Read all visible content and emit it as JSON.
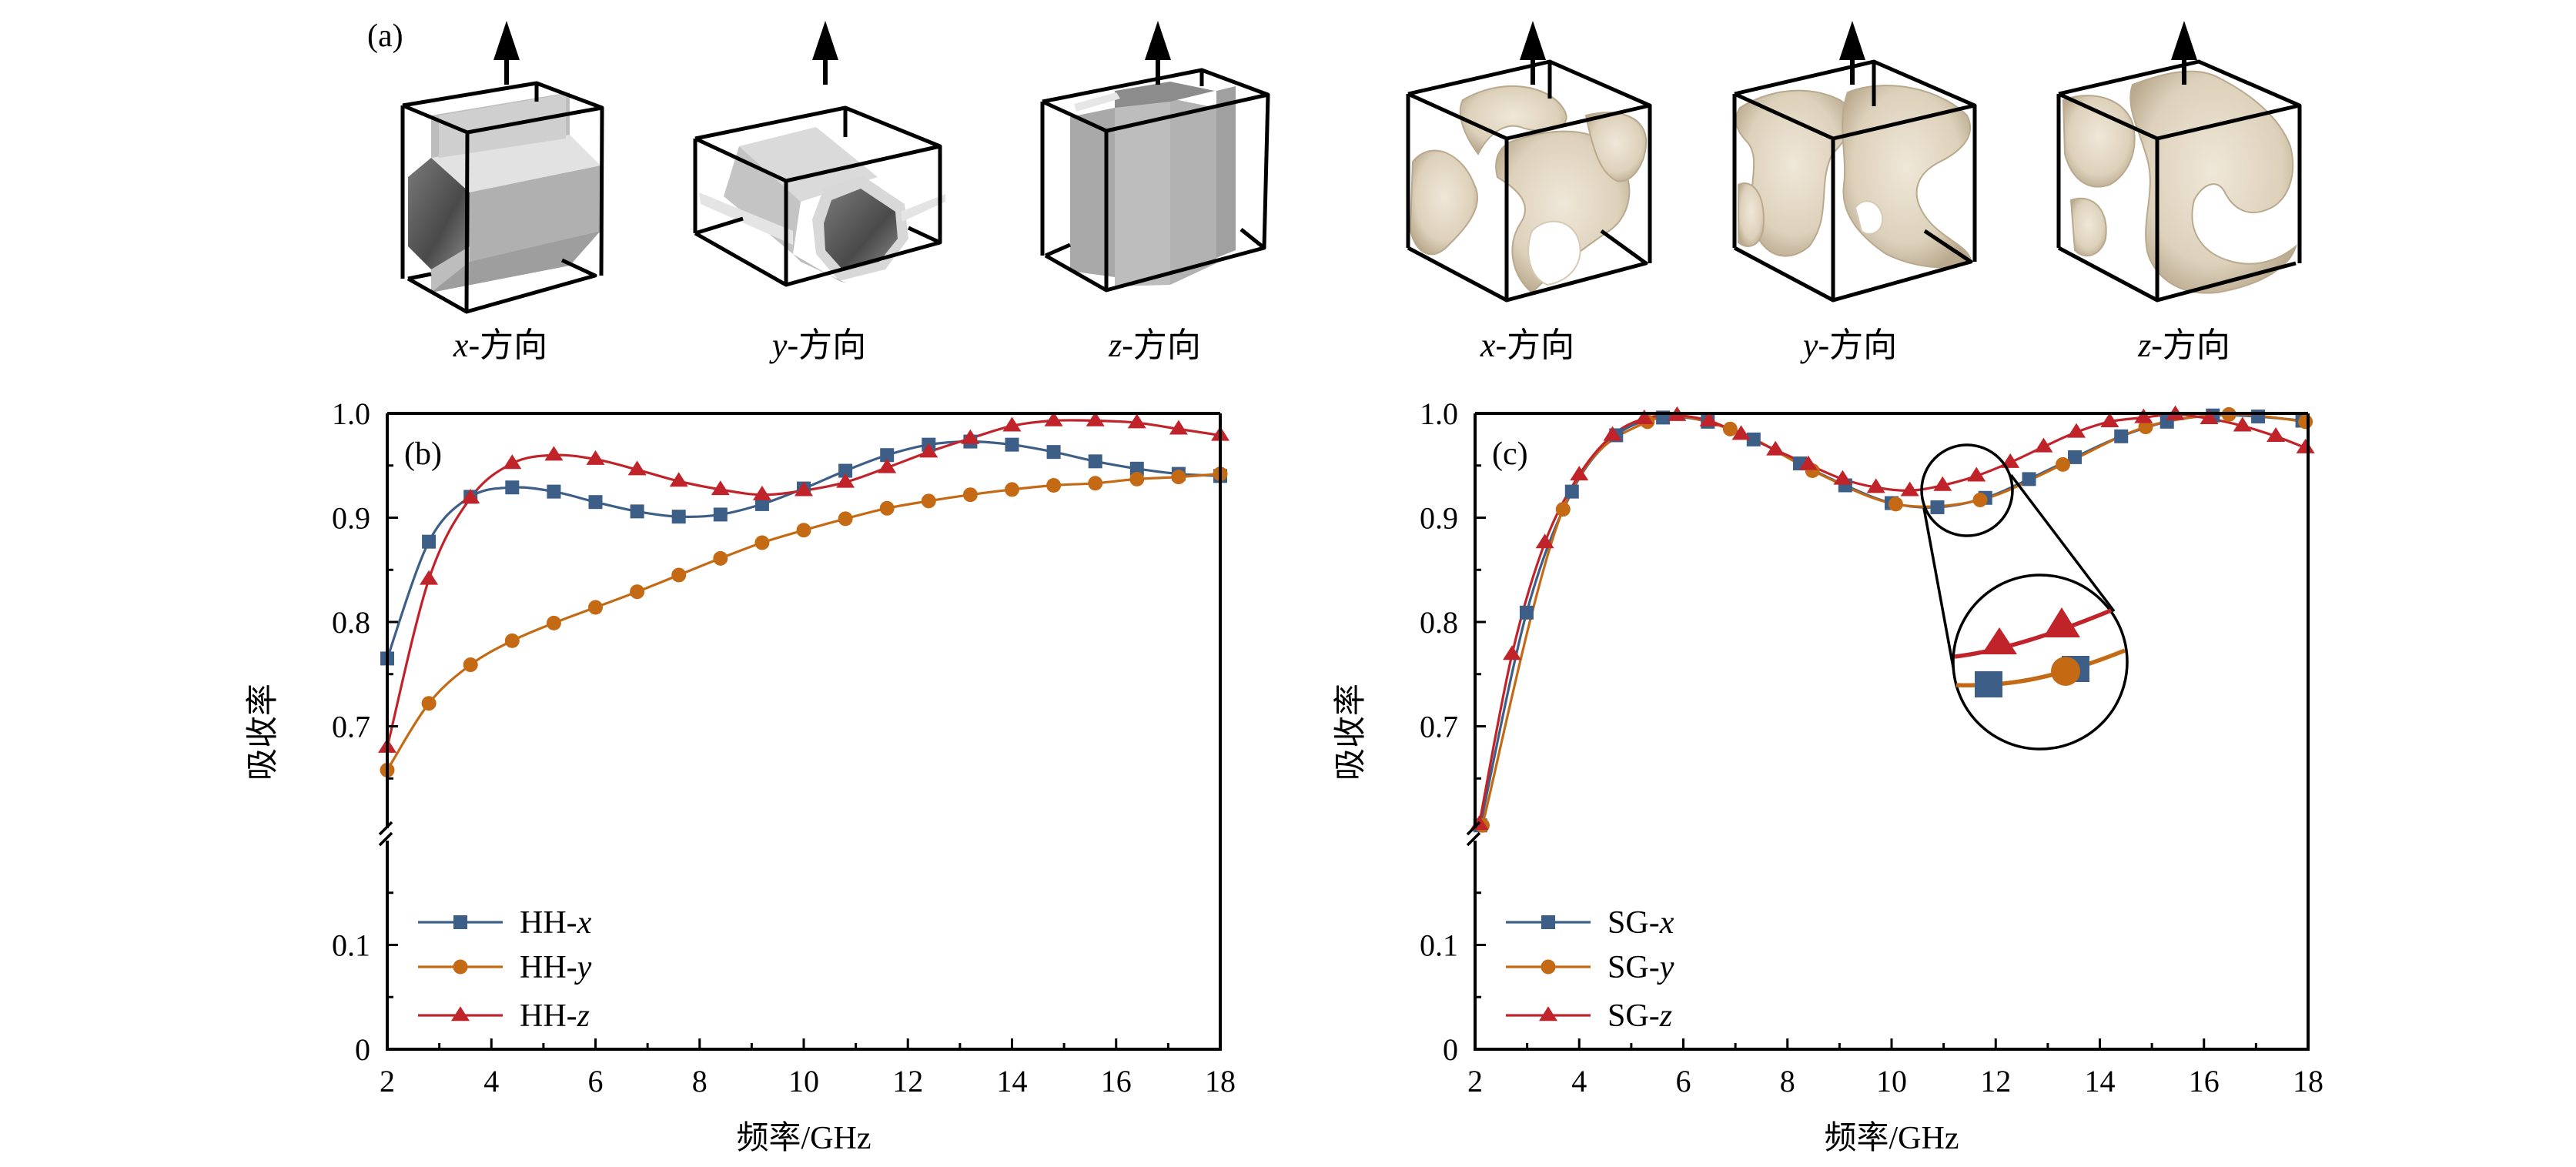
{
  "panel_a": {
    "label": "(a)",
    "structures": [
      {
        "group": "HH",
        "prefix": "x",
        "suffix": "-方向"
      },
      {
        "group": "HH",
        "prefix": "y",
        "suffix": "-方向"
      },
      {
        "group": "HH",
        "prefix": "z",
        "suffix": "-方向"
      },
      {
        "group": "SG",
        "prefix": "x",
        "suffix": "-方向"
      },
      {
        "group": "SG",
        "prefix": "y",
        "suffix": "-方向"
      },
      {
        "group": "SG",
        "prefix": "z",
        "suffix": "-方向"
      }
    ]
  },
  "colors": {
    "x": "#3d5f87",
    "y": "#c46a15",
    "z": "#c0242a",
    "hh_light": "#dcdcdc",
    "hh_mid": "#b4b4b4",
    "hh_dark": "#5a5a5a",
    "sg_fill": "#e6dccb",
    "sg_shade": "#c8b9a0"
  },
  "chart_data": [
    {
      "id": "b",
      "type": "line",
      "panel_label": "(b)",
      "xlabel": "频率/GHz",
      "ylabel": "吸收率",
      "xlim": [
        2,
        18
      ],
      "ylim": [
        0,
        1.0
      ],
      "y_break": [
        0.2,
        0.6
      ],
      "xticks": [
        "2",
        "4",
        "6",
        "8",
        "10",
        "12",
        "14",
        "16",
        "18"
      ],
      "yticks_upper": [
        "0.7",
        "0.8",
        "0.9",
        "1.0"
      ],
      "yticks_lower": [
        "0",
        "0.1"
      ],
      "legend_position": "bottom-left",
      "series": [
        {
          "name_prefix": "HH-",
          "name_var": "x",
          "marker": "square",
          "color_key": "x",
          "x": [
            2.0,
            2.8,
            3.6,
            4.4,
            5.2,
            6.0,
            6.8,
            7.6,
            8.4,
            9.2,
            10.0,
            10.8,
            11.6,
            12.4,
            13.2,
            14.0,
            14.8,
            15.6,
            16.4,
            17.2,
            18.0
          ],
          "y": [
            0.765,
            0.877,
            0.92,
            0.929,
            0.925,
            0.915,
            0.906,
            0.901,
            0.903,
            0.913,
            0.928,
            0.945,
            0.96,
            0.97,
            0.973,
            0.97,
            0.963,
            0.954,
            0.947,
            0.942,
            0.94
          ]
        },
        {
          "name_prefix": "HH-",
          "name_var": "y",
          "marker": "circle",
          "color_key": "y",
          "x": [
            2.0,
            2.8,
            3.6,
            4.4,
            5.2,
            6.0,
            6.8,
            7.6,
            8.4,
            9.2,
            10.0,
            10.8,
            11.6,
            12.4,
            13.2,
            14.0,
            14.8,
            15.6,
            16.4,
            17.2,
            18.0
          ],
          "y": [
            0.658,
            0.722,
            0.759,
            0.782,
            0.799,
            0.814,
            0.829,
            0.845,
            0.861,
            0.876,
            0.888,
            0.899,
            0.909,
            0.916,
            0.922,
            0.927,
            0.931,
            0.933,
            0.937,
            0.939,
            0.942
          ]
        },
        {
          "name_prefix": "HH-",
          "name_var": "z",
          "marker": "triangle",
          "color_key": "z",
          "x": [
            2.0,
            2.8,
            3.6,
            4.4,
            5.2,
            6.0,
            6.8,
            7.6,
            8.4,
            9.2,
            10.0,
            10.8,
            11.6,
            12.4,
            13.2,
            14.0,
            14.8,
            15.6,
            16.4,
            17.2,
            18.0
          ],
          "y": [
            0.68,
            0.841,
            0.919,
            0.952,
            0.96,
            0.956,
            0.946,
            0.935,
            0.927,
            0.922,
            0.926,
            0.934,
            0.948,
            0.963,
            0.976,
            0.988,
            0.993,
            0.993,
            0.991,
            0.985,
            0.979
          ]
        }
      ]
    },
    {
      "id": "c",
      "type": "line",
      "panel_label": "(c)",
      "xlabel": "频率/GHz",
      "ylabel": "吸收率",
      "xlim": [
        2,
        18
      ],
      "ylim": [
        0,
        1.0
      ],
      "y_break": [
        0.2,
        0.6
      ],
      "xticks": [
        "2",
        "4",
        "6",
        "8",
        "10",
        "12",
        "14",
        "16",
        "18"
      ],
      "yticks_upper": [
        "0.7",
        "0.8",
        "0.9",
        "1.0"
      ],
      "yticks_lower": [
        "0",
        "0.1"
      ],
      "legend_position": "bottom-left",
      "inset": "magnified view of 10.5–12.5 GHz region",
      "series": [
        {
          "name_prefix": "SG-",
          "name_var": "x",
          "marker": "square",
          "color_key": "x",
          "x": [
            2.1,
            2.99,
            3.86,
            4.71,
            5.61,
            6.47,
            7.35,
            8.24,
            9.11,
            10.0,
            10.88,
            11.8,
            12.64,
            13.52,
            14.41,
            15.29,
            16.17,
            17.04,
            17.89
          ],
          "y": [
            0.605,
            0.809,
            0.925,
            0.979,
            0.996,
            0.992,
            0.975,
            0.952,
            0.931,
            0.914,
            0.91,
            0.919,
            0.937,
            0.958,
            0.978,
            0.992,
            0.998,
            0.997,
            0.993
          ]
        },
        {
          "name_prefix": "SG-",
          "name_var": "y",
          "marker": "circle",
          "color_key": "y",
          "x": [
            2.14,
            3.69,
            5.31,
            6.9,
            8.48,
            10.08,
            11.7,
            13.29,
            14.88,
            16.48,
            17.95
          ],
          "y": [
            0.605,
            0.908,
            0.992,
            0.985,
            0.945,
            0.913,
            0.917,
            0.951,
            0.987,
            0.999,
            0.992
          ]
        },
        {
          "name_prefix": "SG-",
          "name_var": "z",
          "marker": "triangle",
          "color_key": "z",
          "x": [
            2.08,
            2.71,
            3.34,
            4.0,
            4.64,
            5.25,
            5.88,
            6.49,
            7.11,
            7.77,
            8.4,
            9.06,
            9.7,
            10.35,
            10.98,
            11.63,
            12.28,
            12.92,
            13.55,
            14.19,
            14.84,
            15.45,
            16.1,
            16.74,
            17.38,
            17.95
          ],
          "y": [
            0.606,
            0.769,
            0.876,
            0.941,
            0.979,
            0.995,
            0.998,
            0.993,
            0.98,
            0.965,
            0.951,
            0.937,
            0.929,
            0.926,
            0.931,
            0.94,
            0.953,
            0.968,
            0.982,
            0.992,
            0.996,
            0.999,
            0.995,
            0.988,
            0.978,
            0.967
          ]
        }
      ]
    }
  ]
}
